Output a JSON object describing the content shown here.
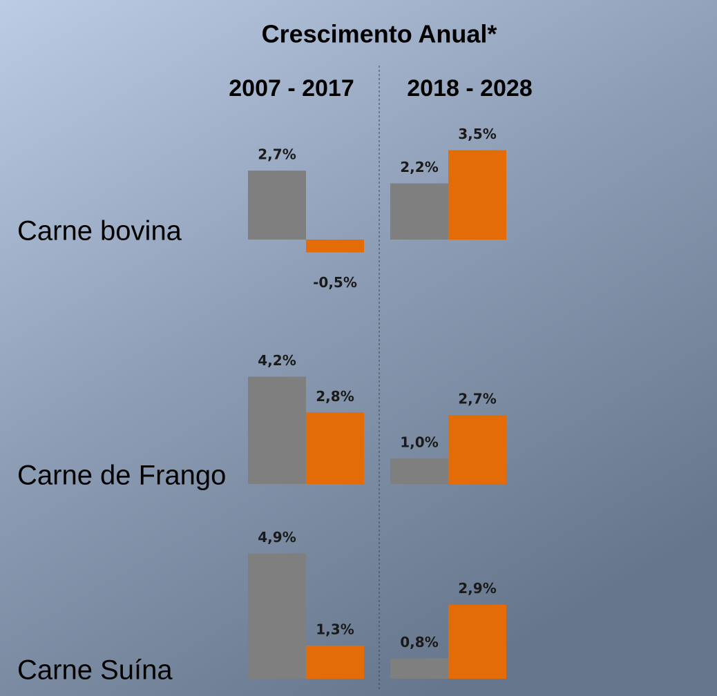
{
  "chart_data": {
    "type": "bar",
    "title": "Crescimento Anual*",
    "periods": [
      "2007 - 2017",
      "2018 - 2028"
    ],
    "colors": [
      "#7f7f7f",
      "#e36c09"
    ],
    "rows": [
      {
        "label": "Carne bovina",
        "values": [
          [
            2.7,
            -0.5
          ],
          [
            2.2,
            3.5
          ]
        ],
        "value_labels": [
          [
            "2,7%",
            "-0,5%"
          ],
          [
            "2,2%",
            "3,5%"
          ]
        ]
      },
      {
        "label": "Carne de Frango",
        "values": [
          [
            4.2,
            2.8
          ],
          [
            1.0,
            2.7
          ]
        ],
        "value_labels": [
          [
            "4,2%",
            "2,8%"
          ],
          [
            "1,0%",
            "2,7%"
          ]
        ]
      },
      {
        "label": "Carne Suína",
        "values": [
          [
            4.9,
            1.3
          ],
          [
            0.8,
            2.9
          ]
        ],
        "value_labels": [
          [
            "4,9%",
            "1,3%"
          ],
          [
            "0,8%",
            "2,9%"
          ]
        ]
      }
    ]
  }
}
